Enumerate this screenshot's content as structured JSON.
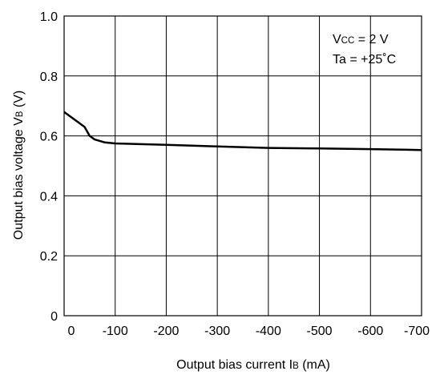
{
  "chart_data": {
    "type": "line",
    "xlabel": {
      "main": "Output bias current I",
      "sub": "B",
      "unit": " (mA)"
    },
    "ylabel": {
      "main": "Output bias voltage V",
      "sub": "B",
      "unit": " (V)"
    },
    "x_ticks": [
      "0",
      "-100",
      "-200",
      "-300",
      "-400",
      "-500",
      "-600",
      "-700"
    ],
    "y_ticks": [
      "0",
      "0.2",
      "0.4",
      "0.6",
      "0.8",
      "1.0"
    ],
    "xlim": [
      0,
      -700
    ],
    "ylim": [
      0,
      1.0
    ],
    "grid": true,
    "annotations": [
      {
        "main": "V",
        "sub": "CC",
        "rest": " = 2 V"
      },
      {
        "main": "Ta = +25",
        "sub": "",
        "rest": "˚C"
      }
    ],
    "series": [
      {
        "x": [
          0,
          -20,
          -40,
          -50,
          -60,
          -80,
          -100,
          -200,
          -300,
          -400,
          -500,
          -600,
          -700
        ],
        "y": [
          0.68,
          0.655,
          0.63,
          0.6,
          0.588,
          0.578,
          0.575,
          0.57,
          0.565,
          0.56,
          0.558,
          0.556,
          0.553
        ]
      }
    ]
  }
}
